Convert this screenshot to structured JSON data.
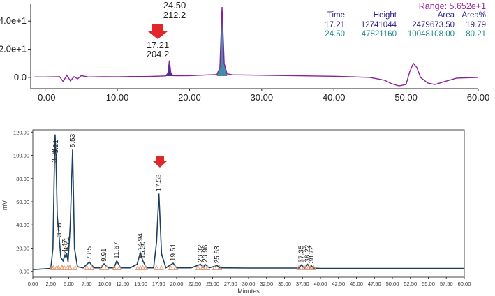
{
  "top_chart": {
    "range_label": "Range: 5.652e+1",
    "table": {
      "headers": [
        "Time",
        "Height",
        "Area",
        "Area%"
      ],
      "rows": [
        [
          "17.21",
          "12741044",
          "2479673.50",
          "19.79"
        ],
        [
          "24.50",
          "47821160",
          "10048108.00",
          "80.21"
        ]
      ]
    },
    "peak_labels": [
      {
        "time": "17.21",
        "value": "204.2"
      },
      {
        "time": "24.50",
        "value": "212.2"
      }
    ]
  },
  "bottom_chart": {
    "ylabel": "mV",
    "xlabel": "Minutes",
    "peak_labels": [
      "3.00",
      "3.21",
      "3.68",
      "4.47",
      "4.71",
      "5.53",
      "7.85",
      "9.91",
      "11.67",
      "14.94",
      "15.30",
      "17.53",
      "19.51",
      "23.32",
      "23.96",
      "25.63",
      "37.35",
      "38.22",
      "38.72"
    ]
  },
  "chart_data": [
    {
      "type": "line",
      "title": "",
      "xlabel": "",
      "ylabel": "",
      "xlim": [
        -2,
        60
      ],
      "ylim": [
        -8,
        52
      ],
      "xticks": [
        "-0.00",
        "10.00",
        "20.00",
        "30.00",
        "40.00",
        "50.00",
        "60.00"
      ],
      "xtick_values": [
        0,
        10,
        20,
        30,
        40,
        50,
        60
      ],
      "yticks": [
        "0.0",
        "2.0e+1",
        "4.0e+1"
      ],
      "ytick_values": [
        0,
        20,
        40
      ],
      "grid": false,
      "colors": {
        "line": "#8a1f9a",
        "fill": "#3f8fa6",
        "peak1_fill": "#3b3b8a",
        "table_row1": "#2a1f8a",
        "table_row2": "#1f8a8a",
        "range": "#9a1fa0",
        "arrow": "#e0282a"
      },
      "annotations": [
        {
          "x": 17.21,
          "y": 12.0,
          "text": "17.21 / 204.2",
          "arrow": true
        },
        {
          "x": 24.5,
          "y": 50.0,
          "text": "24.50 / 212.2"
        }
      ],
      "series": [
        {
          "x": [
            -1.5,
            0,
            2,
            2.5,
            3,
            3.5,
            4,
            4.5,
            5,
            6,
            8,
            10,
            12,
            14,
            16,
            16.7,
            17.0,
            17.21,
            17.4,
            17.7,
            18.5,
            20,
            22,
            23.8,
            24.2,
            24.5,
            24.8,
            25.2,
            26,
            30,
            35,
            40,
            45,
            47,
            48,
            49,
            50,
            50.5,
            51.0,
            51.5,
            52,
            53,
            54,
            55,
            57,
            60
          ],
          "y": [
            0.3,
            0.3,
            0.5,
            -3,
            1.5,
            -2.5,
            0.5,
            -1,
            1.2,
            0.3,
            0.5,
            0.4,
            0.6,
            0.6,
            0.9,
            1.0,
            3.0,
            12.0,
            3.5,
            1.2,
            1.1,
            1.2,
            1.6,
            2.0,
            7.0,
            50.0,
            10.0,
            2.5,
            1.8,
            1.5,
            1.1,
            0.8,
            0.0,
            -2.0,
            -4.5,
            -6.0,
            -5.0,
            4.0,
            10.0,
            7.0,
            0.0,
            -4.0,
            -5.0,
            -3.5,
            -0.5,
            0.0
          ]
        }
      ]
    },
    {
      "type": "line",
      "title": "",
      "xlabel": "Minutes",
      "ylabel": "mV",
      "xlim": [
        0,
        60
      ],
      "ylim": [
        -5,
        122
      ],
      "xticks": [
        "0.00",
        "2.50",
        "5.00",
        "7.50",
        "10.00",
        "12.50",
        "15.00",
        "17.50",
        "20.00",
        "22.50",
        "25.00",
        "27.50",
        "30.00",
        "32.50",
        "35.00",
        "37.50",
        "40.00",
        "42.50",
        "45.00",
        "47.50",
        "50.00",
        "52.50",
        "55.00",
        "57.50",
        "60.00"
      ],
      "xtick_values": [
        0,
        2.5,
        5,
        7.5,
        10,
        12.5,
        15,
        17.5,
        20,
        22.5,
        25,
        27.5,
        30,
        32.5,
        35,
        37.5,
        40,
        42.5,
        45,
        47.5,
        50,
        52.5,
        55,
        57.5,
        60
      ],
      "yticks": [
        "0.00",
        "20.00",
        "40.00",
        "60.00",
        "80.00",
        "100.00",
        "120.00"
      ],
      "ytick_values": [
        0,
        20,
        40,
        60,
        80,
        100,
        120
      ],
      "grid": false,
      "colors": {
        "line": "#1c3f5f",
        "marker": "#e6a07a",
        "arrow": "#e0282a"
      },
      "annotations": [
        {
          "x": 17.53,
          "y": 68,
          "text": "17.53",
          "arrow": true
        }
      ],
      "series": [
        {
          "x": [
            0,
            2.5,
            2.8,
            3.0,
            3.1,
            3.21,
            3.4,
            3.68,
            3.9,
            4.2,
            4.47,
            4.6,
            4.71,
            4.9,
            5.2,
            5.53,
            5.8,
            6.2,
            7.0,
            7.85,
            8.5,
            9.5,
            9.91,
            10.5,
            11.3,
            11.67,
            12.2,
            13.5,
            14.5,
            14.94,
            15.3,
            15.8,
            16.8,
            17.2,
            17.53,
            17.9,
            18.5,
            19.51,
            20.0,
            22.0,
            23.32,
            23.7,
            23.96,
            24.5,
            25.63,
            26.0,
            30.0,
            35.0,
            37.0,
            37.35,
            37.8,
            38.22,
            38.5,
            38.72,
            39.0,
            40.0,
            45.0,
            50.0,
            55.0,
            60.0
          ],
          "y": [
            1.5,
            2.5,
            20.0,
            92.0,
            118.0,
            100.0,
            48.0,
            28.0,
            12.0,
            9.0,
            14.0,
            12.0,
            16.0,
            8.0,
            40.0,
            105.0,
            20.0,
            4.0,
            3.0,
            8.0,
            3.0,
            3.0,
            6.5,
            3.0,
            3.0,
            9.0,
            3.0,
            3.0,
            6.0,
            16.0,
            9.0,
            3.0,
            3.0,
            25.0,
            67.0,
            15.0,
            3.0,
            7.0,
            3.0,
            3.0,
            6.0,
            3.5,
            6.0,
            3.0,
            5.0,
            3.0,
            2.8,
            2.8,
            2.8,
            5.5,
            2.8,
            6.0,
            3.0,
            5.0,
            2.8,
            2.5,
            2.5,
            2.5,
            2.5,
            2.5
          ]
        }
      ]
    }
  ]
}
